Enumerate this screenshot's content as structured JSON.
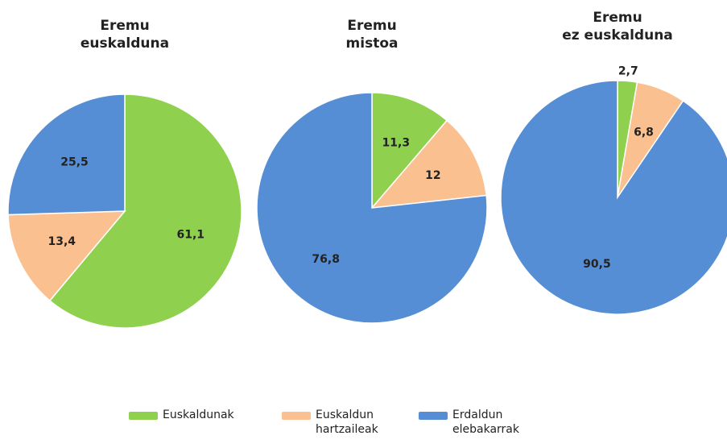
{
  "chart_data": [
    {
      "type": "pie",
      "title": [
        "Eremu",
        "euskalduna"
      ],
      "categories": [
        "Euskaldunak",
        "Euskaldun hartzaileak",
        "Erdaldun elebakarrak"
      ],
      "colors": [
        "#8fd14f",
        "#fac090",
        "#558ed5"
      ],
      "values": [
        61.1,
        13.4,
        25.5
      ],
      "value_labels": [
        "61,1",
        "13,4",
        "25,5"
      ]
    },
    {
      "type": "pie",
      "title": [
        "Eremu",
        "mistoa"
      ],
      "categories": [
        "Euskaldunak",
        "Euskaldun hartzaileak",
        "Erdaldun elebakarrak"
      ],
      "colors": [
        "#8fd14f",
        "#fac090",
        "#558ed5"
      ],
      "values": [
        11.3,
        12,
        76.8
      ],
      "value_labels": [
        "11,3",
        "12",
        "76,8"
      ]
    },
    {
      "type": "pie",
      "title": [
        "Eremu",
        "ez euskalduna"
      ],
      "categories": [
        "Euskaldunak",
        "Euskaldun hartzaileak",
        "Erdaldun elebakarrak"
      ],
      "colors": [
        "#8fd14f",
        "#fac090",
        "#558ed5"
      ],
      "values": [
        2.7,
        6.8,
        90.5
      ],
      "value_labels": [
        "2,7",
        "6,8",
        "90,5"
      ]
    }
  ]
}
